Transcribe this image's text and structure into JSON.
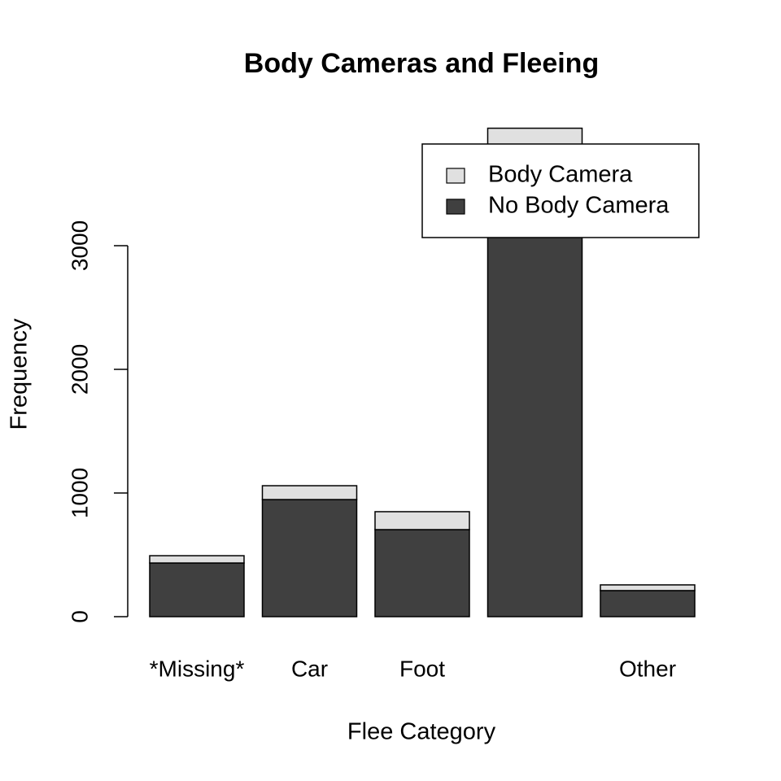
{
  "chart_data": {
    "type": "bar",
    "stacked": true,
    "title": "Body Cameras and Fleeing",
    "x_label": "Flee Category",
    "y_label": "Frequency",
    "categories": [
      "*Missing*",
      "Car",
      "Foot",
      null,
      "Other"
    ],
    "series": [
      {
        "name": "No Body Camera",
        "color": "#404040",
        "values": [
          434,
          947,
          704,
          3480,
          211
        ]
      },
      {
        "name": "Body Camera",
        "color": "#e0e0e0",
        "values": [
          59,
          112,
          145,
          470,
          46
        ]
      }
    ],
    "ylim": [
      0,
      4100
    ],
    "yticks": [
      0,
      1000,
      2000,
      3000
    ],
    "legend": "top-right"
  }
}
